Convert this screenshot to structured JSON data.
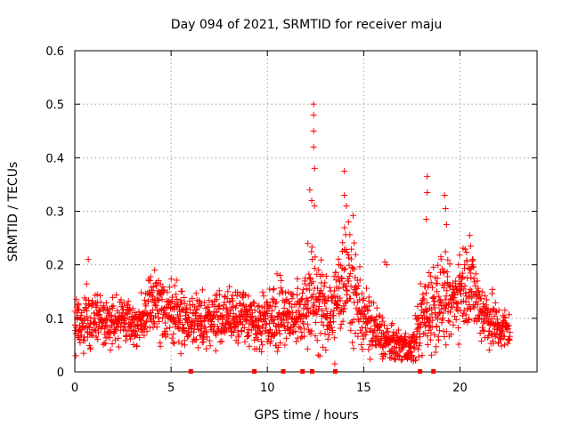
{
  "chart_data": {
    "type": "scatter",
    "title": "Day 094 of 2021, SRMTID for receiver maju",
    "xlabel": "GPS time / hours",
    "ylabel": "SRMTID / TECUs",
    "xlim": [
      0,
      24
    ],
    "ylim": [
      0,
      0.6
    ],
    "xticks": [
      0,
      5,
      10,
      15,
      20
    ],
    "xtick_labels": [
      "0",
      "5",
      "10",
      "15",
      "20"
    ],
    "yticks": [
      0,
      0.1,
      0.2,
      0.3,
      0.4,
      0.5,
      0.6
    ],
    "ytick_labels": [
      "0",
      "0.1",
      "0.2",
      "0.3",
      "0.4",
      "0.5",
      "0.6"
    ],
    "grid": true,
    "marker": "+",
    "color": "#ff0000",
    "gap_marker_times": [
      6.0,
      9.3,
      10.8,
      11.8,
      12.3,
      13.5,
      17.9,
      18.6
    ],
    "profile_hours": [
      0,
      0.5,
      1.0,
      1.5,
      2.0,
      2.5,
      3.0,
      3.5,
      4.0,
      4.5,
      5.0,
      5.5,
      6.0,
      6.5,
      7.0,
      7.5,
      8.0,
      8.5,
      9.0,
      9.5,
      10.0,
      10.5,
      11.0,
      11.5,
      12.0,
      12.5,
      13.0,
      13.5,
      14.0,
      14.5,
      15.0,
      15.5,
      16.0,
      16.5,
      17.0,
      17.5,
      18.0,
      18.5,
      19.0,
      19.5,
      20.0,
      20.5,
      21.0,
      21.5,
      22.0,
      22.6
    ],
    "profile_mean": [
      0.09,
      0.1,
      0.1,
      0.09,
      0.09,
      0.1,
      0.09,
      0.09,
      0.13,
      0.12,
      0.11,
      0.1,
      0.1,
      0.09,
      0.1,
      0.1,
      0.1,
      0.11,
      0.1,
      0.09,
      0.1,
      0.11,
      0.11,
      0.1,
      0.13,
      0.14,
      0.11,
      0.12,
      0.19,
      0.15,
      0.1,
      0.08,
      0.06,
      0.05,
      0.05,
      0.04,
      0.1,
      0.12,
      0.14,
      0.12,
      0.16,
      0.17,
      0.12,
      0.1,
      0.08,
      0.08
    ],
    "profile_spread": [
      0.025,
      0.03,
      0.025,
      0.025,
      0.02,
      0.02,
      0.02,
      0.02,
      0.03,
      0.03,
      0.025,
      0.025,
      0.025,
      0.025,
      0.025,
      0.025,
      0.025,
      0.025,
      0.025,
      0.025,
      0.03,
      0.03,
      0.03,
      0.03,
      0.04,
      0.05,
      0.03,
      0.04,
      0.05,
      0.05,
      0.03,
      0.03,
      0.02,
      0.015,
      0.015,
      0.015,
      0.035,
      0.04,
      0.04,
      0.03,
      0.04,
      0.04,
      0.03,
      0.03,
      0.02,
      0.02
    ],
    "peaks": [
      {
        "x": 12.4,
        "y": 0.5
      },
      {
        "x": 12.4,
        "y": 0.48
      },
      {
        "x": 12.4,
        "y": 0.45
      },
      {
        "x": 12.4,
        "y": 0.42
      },
      {
        "x": 12.45,
        "y": 0.38
      },
      {
        "x": 12.2,
        "y": 0.34
      },
      {
        "x": 12.3,
        "y": 0.32
      },
      {
        "x": 12.45,
        "y": 0.31
      },
      {
        "x": 12.1,
        "y": 0.24
      },
      {
        "x": 14.0,
        "y": 0.375
      },
      {
        "x": 14.0,
        "y": 0.33
      },
      {
        "x": 14.1,
        "y": 0.31
      },
      {
        "x": 13.5,
        "y": 0.015
      },
      {
        "x": 18.3,
        "y": 0.365
      },
      {
        "x": 18.3,
        "y": 0.335
      },
      {
        "x": 18.25,
        "y": 0.285
      },
      {
        "x": 19.2,
        "y": 0.33
      },
      {
        "x": 19.25,
        "y": 0.305
      },
      {
        "x": 19.3,
        "y": 0.275
      },
      {
        "x": 20.5,
        "y": 0.255
      },
      {
        "x": 20.55,
        "y": 0.235
      },
      {
        "x": 0.7,
        "y": 0.21
      },
      {
        "x": 4.15,
        "y": 0.19
      },
      {
        "x": 16.1,
        "y": 0.205
      },
      {
        "x": 16.2,
        "y": 0.2
      }
    ]
  }
}
